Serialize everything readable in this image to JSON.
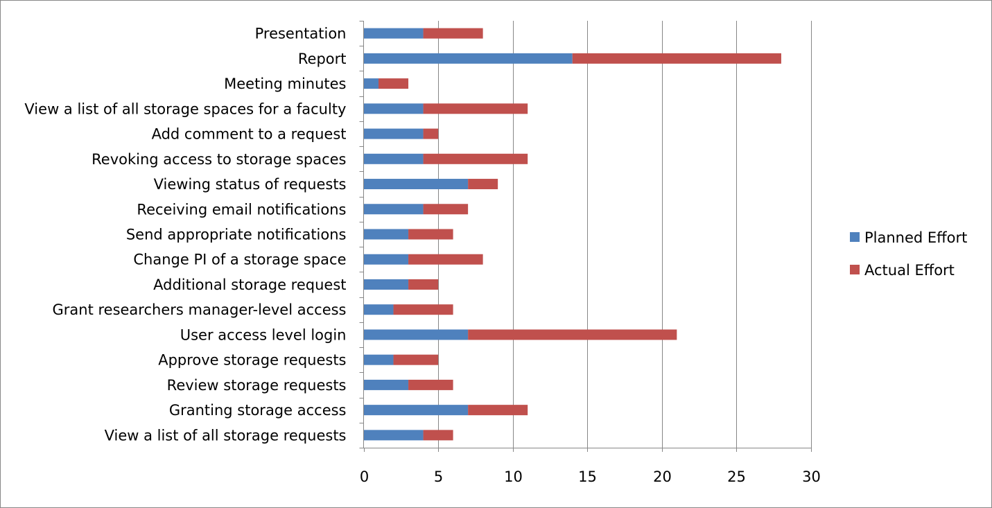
{
  "chart_data": {
    "type": "bar",
    "orientation": "horizontal",
    "stacked": true,
    "categories": [
      "View a list of all storage requests",
      "Granting storage access",
      "Review storage requests",
      "Approve storage requests",
      "User access level login",
      "Grant researchers manager-level access",
      "Additional storage request",
      "Change PI of a storage space",
      "Send appropriate notifications",
      "Receiving email notifications",
      "Viewing status of requests",
      "Revoking access to storage spaces",
      "Add comment to a request",
      "View a list of all storage spaces for a faculty",
      "Meeting minutes",
      "Report",
      "Presentation"
    ],
    "series": [
      {
        "name": "Planned Effort",
        "color": "#4F81BD",
        "values": [
          4,
          7,
          3,
          2,
          7,
          2,
          3,
          3,
          3,
          4,
          7,
          4,
          4,
          4,
          1,
          14,
          4
        ]
      },
      {
        "name": "Actual Effort",
        "color": "#C0504D",
        "values": [
          2,
          4,
          3,
          3,
          14,
          4,
          2,
          5,
          3,
          3,
          2,
          7,
          1,
          7,
          2,
          14,
          4
        ]
      }
    ],
    "xlim": [
      0,
      30
    ],
    "xticks": [
      0,
      5,
      10,
      15,
      20,
      25,
      30
    ],
    "xtick_labels": [
      "0",
      "5",
      "10",
      "15",
      "20",
      "25",
      "30"
    ],
    "grid": "vertical major gridlines",
    "legend_position": "right"
  }
}
